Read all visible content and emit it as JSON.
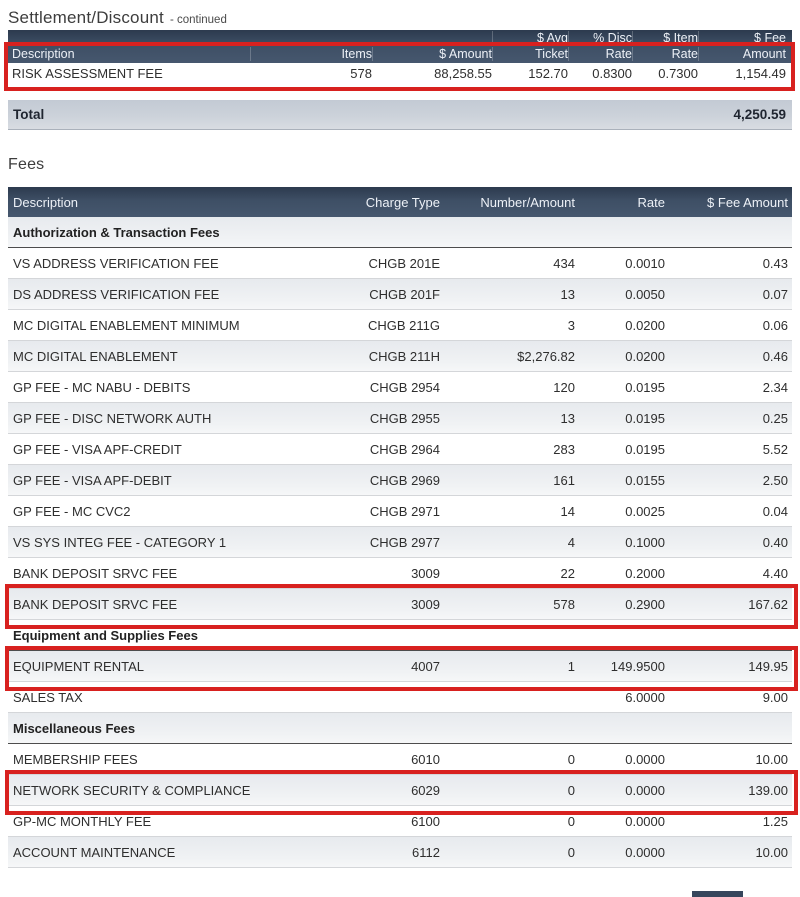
{
  "settlement": {
    "title": "Settlement/Discount",
    "title_suffix": "- continued",
    "header_top": [
      "$ Avg",
      "% Disc",
      "$ Item",
      "$ Fee"
    ],
    "header": [
      "Description",
      "Items",
      "$ Amount",
      "Ticket",
      "Rate",
      "Rate",
      "Amount"
    ],
    "rows": [
      {
        "description": "RISK ASSESSMENT FEE",
        "items": "578",
        "amount": "88,258.55",
        "avg_ticket": "152.70",
        "disc_rate": "0.8300",
        "item_rate": "0.7300",
        "fee_amount": "1,154.49",
        "highlighted": true
      }
    ],
    "total_label": "Total",
    "total_value": "4,250.59"
  },
  "fees": {
    "title": "Fees",
    "header": [
      "Description",
      "Charge Type",
      "Number/Amount",
      "Rate",
      "$ Fee Amount"
    ],
    "rows": [
      {
        "type": "section",
        "label": "Authorization & Transaction Fees"
      },
      {
        "type": "data",
        "description": "VS ADDRESS VERIFICATION FEE",
        "charge_type": "CHGB 201E",
        "number_amount": "434",
        "rate": "0.0010",
        "fee_amount": "0.43",
        "highlighted": false
      },
      {
        "type": "data",
        "description": "DS ADDRESS VERIFICATION FEE",
        "charge_type": "CHGB 201F",
        "number_amount": "13",
        "rate": "0.0050",
        "fee_amount": "0.07",
        "highlighted": false
      },
      {
        "type": "data",
        "description": "MC DIGITAL ENABLEMENT MINIMUM",
        "charge_type": "CHGB 211G",
        "number_amount": "3",
        "rate": "0.0200",
        "fee_amount": "0.06",
        "highlighted": false
      },
      {
        "type": "data",
        "description": "MC DIGITAL ENABLEMENT",
        "charge_type": "CHGB 211H",
        "number_amount": "$2,276.82",
        "rate": "0.0200",
        "fee_amount": "0.46",
        "highlighted": false
      },
      {
        "type": "data",
        "description": "GP FEE - MC NABU - DEBITS",
        "charge_type": "CHGB 2954",
        "number_amount": "120",
        "rate": "0.0195",
        "fee_amount": "2.34",
        "highlighted": false
      },
      {
        "type": "data",
        "description": "GP FEE - DISC NETWORK AUTH",
        "charge_type": "CHGB 2955",
        "number_amount": "13",
        "rate": "0.0195",
        "fee_amount": "0.25",
        "highlighted": false
      },
      {
        "type": "data",
        "description": "GP FEE - VISA APF-CREDIT",
        "charge_type": "CHGB 2964",
        "number_amount": "283",
        "rate": "0.0195",
        "fee_amount": "5.52",
        "highlighted": false
      },
      {
        "type": "data",
        "description": "GP FEE - VISA APF-DEBIT",
        "charge_type": "CHGB 2969",
        "number_amount": "161",
        "rate": "0.0155",
        "fee_amount": "2.50",
        "highlighted": false
      },
      {
        "type": "data",
        "description": "GP FEE - MC CVC2",
        "charge_type": "CHGB 2971",
        "number_amount": "14",
        "rate": "0.0025",
        "fee_amount": "0.04",
        "highlighted": false
      },
      {
        "type": "data",
        "description": "VS SYS INTEG FEE - CATEGORY 1",
        "charge_type": "CHGB 2977",
        "number_amount": "4",
        "rate": "0.1000",
        "fee_amount": "0.40",
        "highlighted": false
      },
      {
        "type": "data",
        "description": "BANK DEPOSIT SRVC FEE",
        "charge_type": "3009",
        "number_amount": "22",
        "rate": "0.2000",
        "fee_amount": "4.40",
        "highlighted": false
      },
      {
        "type": "data",
        "description": "BANK DEPOSIT SRVC FEE",
        "charge_type": "3009",
        "number_amount": "578",
        "rate": "0.2900",
        "fee_amount": "167.62",
        "highlighted": true
      },
      {
        "type": "section",
        "label": "Equipment and Supplies Fees"
      },
      {
        "type": "data",
        "description": "EQUIPMENT RENTAL",
        "charge_type": "4007",
        "number_amount": "1",
        "rate": "149.9500",
        "fee_amount": "149.95",
        "highlighted": true
      },
      {
        "type": "data",
        "description": "SALES TAX",
        "charge_type": "",
        "number_amount": "",
        "rate": "6.0000",
        "fee_amount": "9.00",
        "highlighted": false
      },
      {
        "type": "section",
        "label": "Miscellaneous Fees"
      },
      {
        "type": "data",
        "description": "MEMBERSHIP FEES",
        "charge_type": "6010",
        "number_amount": "0",
        "rate": "0.0000",
        "fee_amount": "10.00",
        "highlighted": false
      },
      {
        "type": "data",
        "description": "NETWORK SECURITY & COMPLIANCE",
        "charge_type": "6029",
        "number_amount": "0",
        "rate": "0.0000",
        "fee_amount": "139.00",
        "highlighted": true
      },
      {
        "type": "data",
        "description": "GP-MC MONTHLY FEE",
        "charge_type": "6100",
        "number_amount": "0",
        "rate": "0.0000",
        "fee_amount": "1.25",
        "highlighted": false
      },
      {
        "type": "data",
        "description": "ACCOUNT MAINTENANCE",
        "charge_type": "6112",
        "number_amount": "0",
        "rate": "0.0000",
        "fee_amount": "10.00",
        "highlighted": false
      }
    ]
  },
  "colors": {
    "header_bar": "#3e4f65",
    "stripe_row": "#edeff2",
    "total_bar": "#ccd2da",
    "highlight_box": "#d8211f",
    "bottom_block": "#36465c"
  }
}
